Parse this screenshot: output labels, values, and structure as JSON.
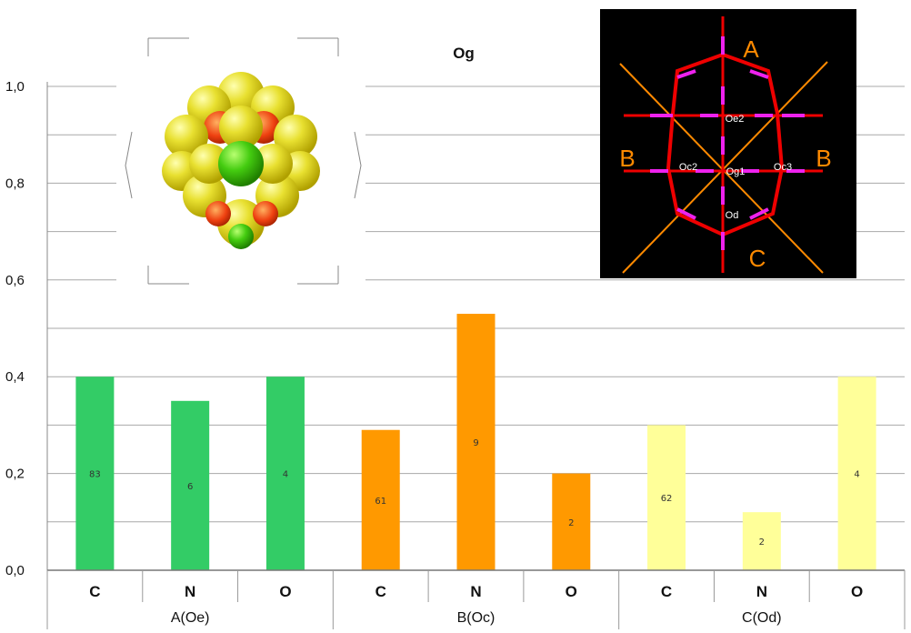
{
  "chart_data": {
    "type": "bar",
    "title": "Og",
    "ylim": [
      0,
      1.0
    ],
    "yticks": [
      "0,0",
      "0,2",
      "0,4",
      "0,6",
      "0,8",
      "1,0"
    ],
    "grid": true,
    "categories": [
      "C",
      "N",
      "O",
      "C",
      "N",
      "O",
      "C",
      "N",
      "O"
    ],
    "groups": [
      "A(Oe)",
      "B(Oc)",
      "C(Od)"
    ],
    "values": [
      0.4,
      0.35,
      0.4,
      0.29,
      0.53,
      0.2,
      0.3,
      0.12,
      0.4
    ],
    "data_labels": [
      "83",
      "6",
      "4",
      "61",
      "9",
      "2",
      "62",
      "2",
      "4"
    ],
    "bar_colors": [
      "#33cc66",
      "#33cc66",
      "#33cc66",
      "#ff9900",
      "#ff9900",
      "#ff9900",
      "#ffff99",
      "#ffff99",
      "#ffff99"
    ]
  },
  "diagram": {
    "labels": {
      "A": "A",
      "B_left": "B",
      "B_right": "B",
      "C": "C"
    },
    "atoms": {
      "oe2": "Oe2",
      "oc2": "Oc2",
      "og1": "Og1",
      "oc3": "Oc3",
      "od": "Od"
    }
  }
}
